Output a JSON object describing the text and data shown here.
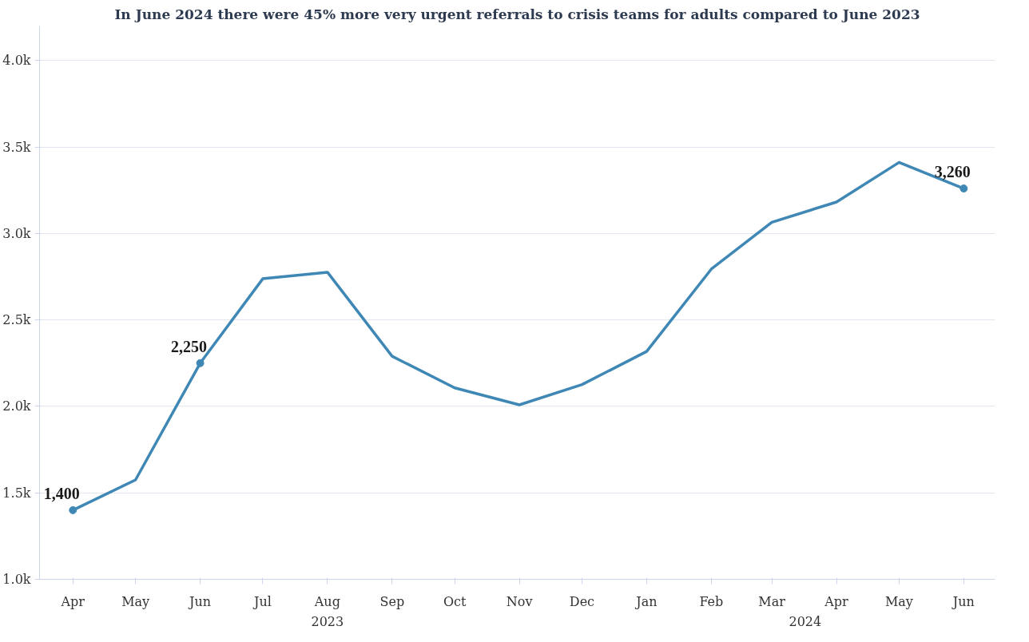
{
  "chart_data": {
    "type": "line",
    "title": "In June 2024 there were 45% more very urgent referrals to crisis teams for adults compared to June 2023",
    "x": [
      "2023-04",
      "2023-05",
      "2023-06",
      "2023-07",
      "2023-08",
      "2023-09",
      "2023-10",
      "2023-11",
      "2023-12",
      "2024-01",
      "2024-02",
      "2024-03",
      "2024-04",
      "2024-05",
      "2024-06"
    ],
    "series": [
      {
        "color": "#3f88b5",
        "values": [
          1400,
          1575,
          2250,
          2738,
          2776,
          2290,
          2107,
          2009,
          2126,
          2318,
          2794,
          3065,
          3182,
          3411,
          3260
        ],
        "value_labels": [
          "1,400",
          null,
          "2,250",
          null,
          null,
          null,
          null,
          null,
          null,
          null,
          null,
          null,
          null,
          null,
          "3,260"
        ]
      }
    ],
    "xlim": [
      "2023-03-16",
      "2024-06-16"
    ],
    "xticks": [
      {
        "value": "2023-04",
        "label": "Apr"
      },
      {
        "value": "2023-05",
        "label": "May"
      },
      {
        "value": "2023-06",
        "label": "Jun"
      },
      {
        "value": "2023-07",
        "label": "Jul"
      },
      {
        "value": "2023-08",
        "label": "Aug"
      },
      {
        "value": "2023-09",
        "label": "Sep"
      },
      {
        "value": "2023-10",
        "label": "Oct"
      },
      {
        "value": "2023-11",
        "label": "Nov"
      },
      {
        "value": "2023-12",
        "label": "Dec"
      },
      {
        "value": "2024-01",
        "label": "Jan"
      },
      {
        "value": "2024-02",
        "label": "Feb"
      },
      {
        "value": "2024-03",
        "label": "Mar"
      },
      {
        "value": "2024-04",
        "label": "Apr"
      },
      {
        "value": "2024-05",
        "label": "May"
      },
      {
        "value": "2024-06",
        "label": "Jun"
      }
    ],
    "annotations": [
      "2023",
      "2024"
    ],
    "ylim": [
      1000,
      4200
    ],
    "yticks": [
      {
        "value": 1000,
        "label": "1.0k"
      },
      {
        "value": 1500,
        "label": "1.5k"
      },
      {
        "value": 2000,
        "label": "2.0k"
      },
      {
        "value": 2500,
        "label": "2.5k"
      },
      {
        "value": 3000,
        "label": "3.0k"
      },
      {
        "value": 3500,
        "label": "3.5k"
      },
      {
        "value": 4000,
        "label": "4.0k"
      }
    ],
    "grid": "y",
    "line_style": "solid"
  }
}
